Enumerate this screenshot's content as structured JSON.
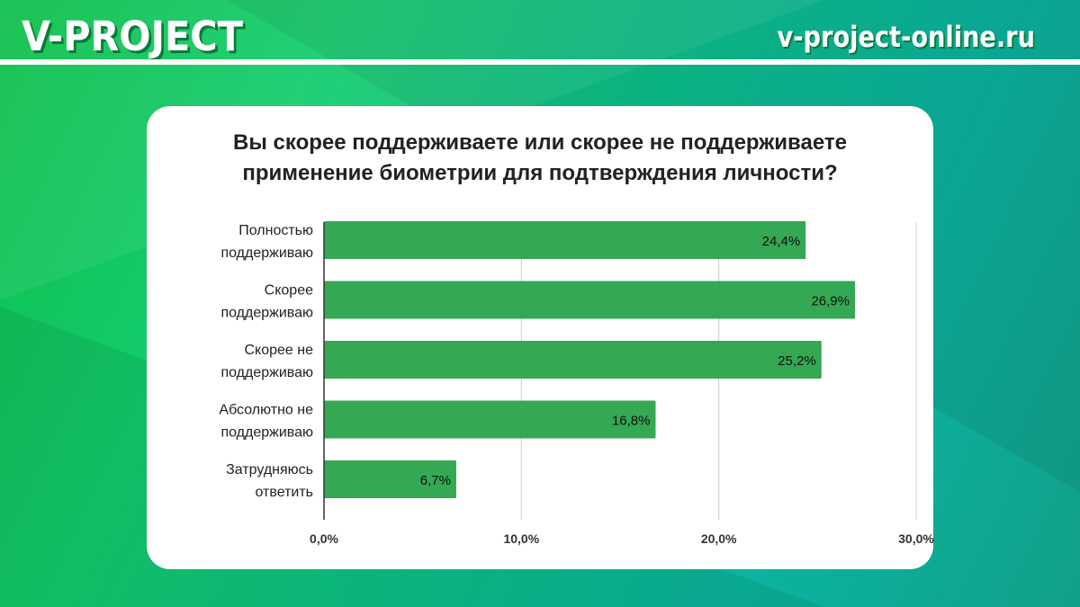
{
  "header": {
    "brand": "V-PROJECT",
    "site": "v-project-online.ru"
  },
  "colors": {
    "bar": "#34a853",
    "grid": "#cccccc",
    "axis": "#333333"
  },
  "chart_data": {
    "type": "bar",
    "orientation": "horizontal",
    "title_lines": [
      "Вы скорее поддерживаете или скорее не поддерживаете",
      "применение биометрии для подтверждения личности?"
    ],
    "categories": [
      [
        "Полностью",
        "поддерживаю"
      ],
      [
        "Скорее",
        "поддерживаю"
      ],
      [
        "Скорее не",
        "поддерживаю"
      ],
      [
        "Абсолютно не",
        "поддерживаю"
      ],
      [
        "Затрудняюсь",
        "ответить"
      ]
    ],
    "values": [
      24.4,
      26.9,
      25.2,
      16.8,
      6.7
    ],
    "data_labels": [
      "24,4%",
      "26,9%",
      "25,2%",
      "16,8%",
      "6,7%"
    ],
    "xticks": [
      0,
      10,
      20,
      30
    ],
    "xtick_labels": [
      "0,0%",
      "10,0%",
      "20,0%",
      "30,0%"
    ],
    "xlim": [
      0,
      30
    ],
    "grid": true
  }
}
